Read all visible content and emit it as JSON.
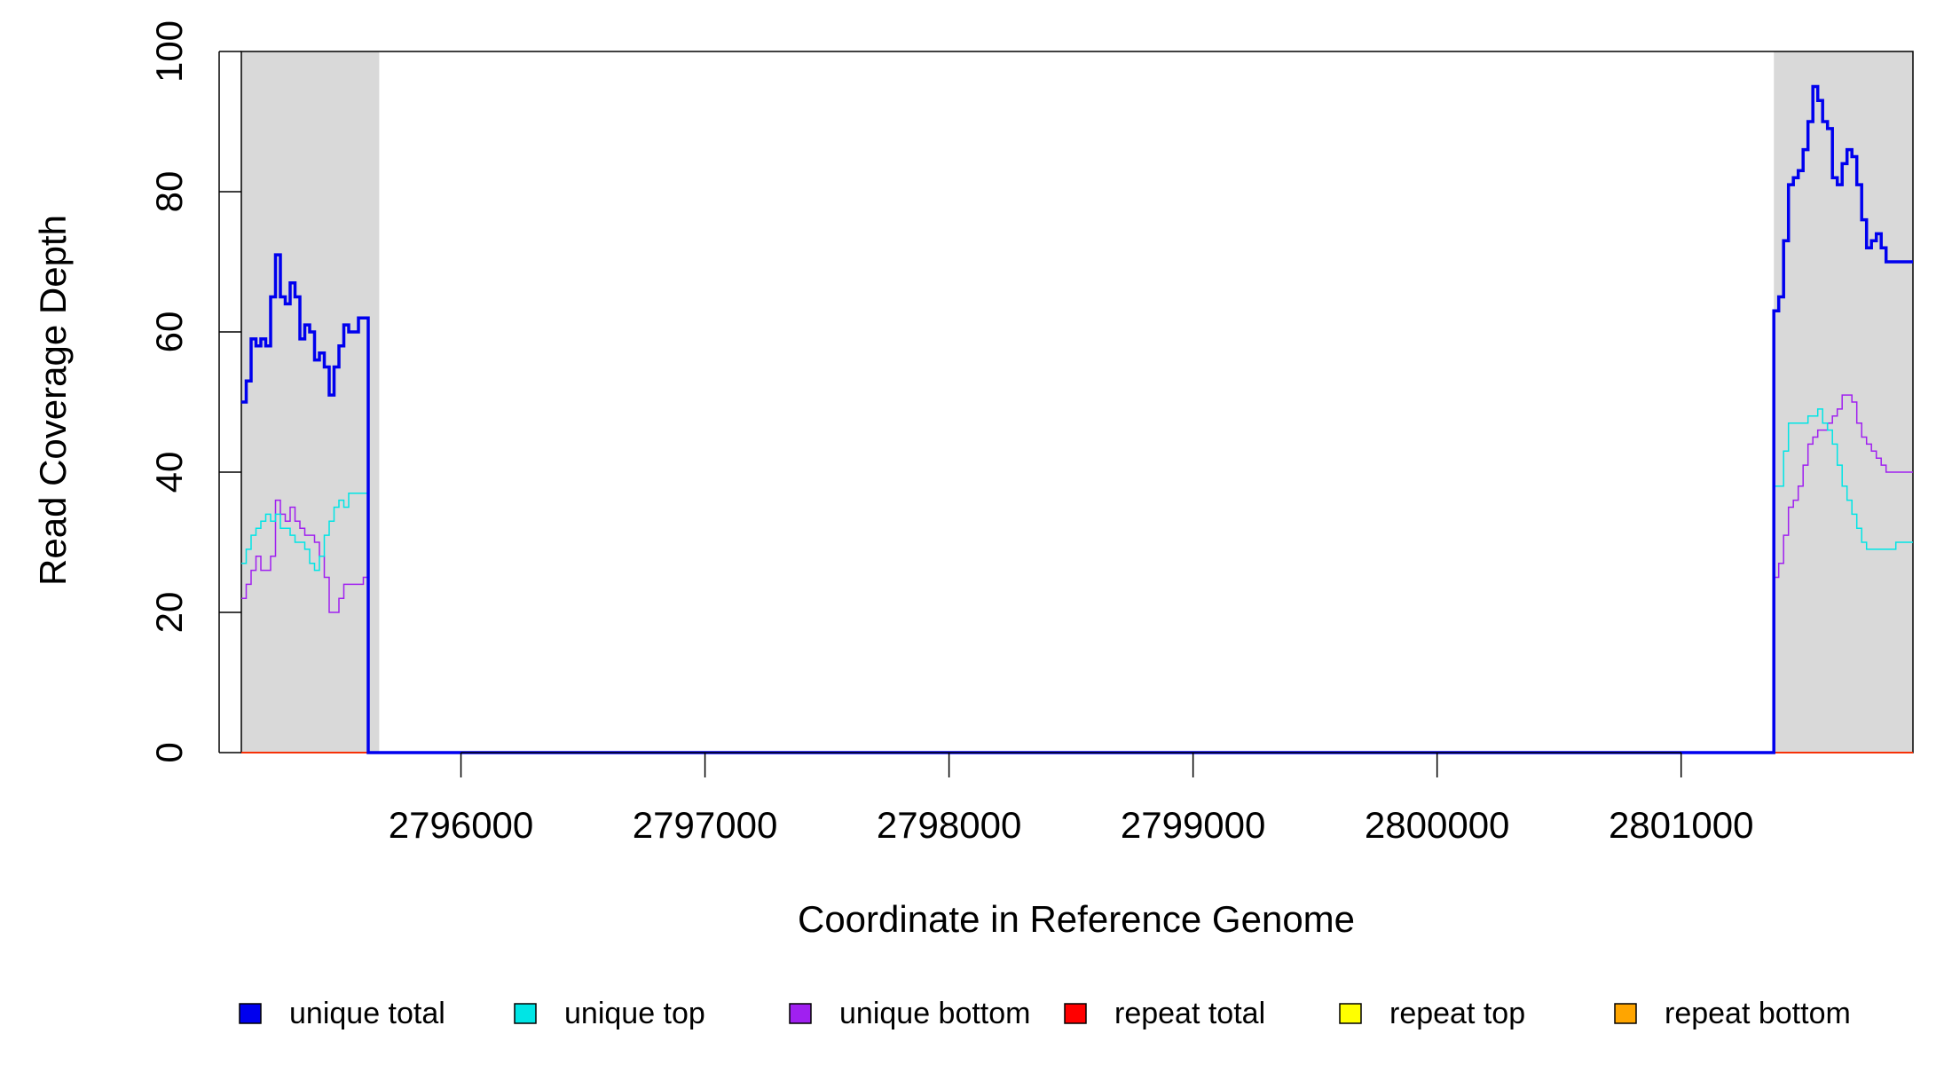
{
  "chart_data": {
    "type": "line",
    "xlabel": "Coordinate in Reference Genome",
    "ylabel": "Read Coverage Depth",
    "xlim": [
      2795100,
      2801950
    ],
    "ylim": [
      0,
      100
    ],
    "x_ticks": [
      2796000,
      2797000,
      2798000,
      2799000,
      2800000,
      2801000
    ],
    "x_tick_labels": [
      "2796000",
      "2797000",
      "2798000",
      "2799000",
      "2800000",
      "2801000"
    ],
    "y_ticks": [
      0,
      20,
      40,
      60,
      80,
      100
    ],
    "y_tick_labels": [
      "0",
      "20",
      "40",
      "60",
      "80",
      "100"
    ],
    "shaded_regions": [
      [
        2795100,
        2795665
      ],
      [
        2801380,
        2801950
      ]
    ],
    "shade_color": "#d9d9d9",
    "legend_position": "bottom",
    "series": [
      {
        "name": "unique total",
        "color": "#0000ee",
        "line_width": 3.5,
        "x": [
          2795100,
          2795120,
          2795140,
          2795160,
          2795180,
          2795200,
          2795220,
          2795240,
          2795260,
          2795280,
          2795300,
          2795320,
          2795340,
          2795360,
          2795380,
          2795400,
          2795420,
          2795440,
          2795460,
          2795480,
          2795500,
          2795520,
          2795540,
          2795560,
          2795580,
          2795600,
          2795620,
          2795640,
          2795660,
          2795665,
          2795670,
          2801375,
          2801380,
          2801400,
          2801420,
          2801440,
          2801460,
          2801480,
          2801500,
          2801520,
          2801540,
          2801560,
          2801580,
          2801600,
          2801620,
          2801640,
          2801660,
          2801680,
          2801700,
          2801720,
          2801740,
          2801760,
          2801780,
          2801800,
          2801820,
          2801840,
          2801860,
          2801880,
          2801900,
          2801920,
          2801950
        ],
        "y": [
          50,
          53,
          59,
          58,
          59,
          58,
          65,
          71,
          65,
          64,
          67,
          65,
          59,
          61,
          60,
          56,
          57,
          55,
          51,
          55,
          58,
          61,
          60,
          60,
          62,
          62,
          0,
          0,
          0,
          0,
          0,
          0,
          63,
          65,
          73,
          81,
          82,
          83,
          86,
          90,
          95,
          93,
          90,
          89,
          82,
          81,
          84,
          86,
          85,
          81,
          76,
          72,
          73,
          74,
          72,
          70,
          70,
          70,
          70,
          70,
          70
        ]
      },
      {
        "name": "unique top",
        "color": "#00e5e5",
        "line_width": 1.5,
        "x": [
          2795100,
          2795120,
          2795140,
          2795160,
          2795180,
          2795200,
          2795220,
          2795240,
          2795260,
          2795280,
          2795300,
          2795320,
          2795340,
          2795360,
          2795380,
          2795400,
          2795420,
          2795440,
          2795460,
          2795480,
          2795500,
          2795520,
          2795540,
          2795560,
          2795580,
          2795600,
          2795620,
          2795640,
          2795660,
          2795665,
          2795670,
          2801375,
          2801380,
          2801400,
          2801420,
          2801440,
          2801460,
          2801480,
          2801500,
          2801520,
          2801540,
          2801560,
          2801580,
          2801600,
          2801620,
          2801640,
          2801660,
          2801680,
          2801700,
          2801720,
          2801740,
          2801760,
          2801780,
          2801800,
          2801820,
          2801840,
          2801860,
          2801880,
          2801900,
          2801920,
          2801950
        ],
        "y": [
          27,
          29,
          31,
          32,
          33,
          34,
          33,
          34,
          32,
          32,
          31,
          30,
          30,
          29,
          27,
          26,
          28,
          31,
          33,
          35,
          36,
          35,
          37,
          37,
          37,
          37,
          0,
          0,
          0,
          0,
          0,
          0,
          38,
          38,
          43,
          47,
          47,
          47,
          47,
          48,
          48,
          49,
          47,
          46,
          44,
          41,
          38,
          36,
          34,
          32,
          30,
          29,
          29,
          29,
          29,
          29,
          29,
          30,
          30,
          30,
          30
        ]
      },
      {
        "name": "unique bottom",
        "color": "#a020f0",
        "line_width": 1.5,
        "x": [
          2795100,
          2795120,
          2795140,
          2795160,
          2795180,
          2795200,
          2795220,
          2795240,
          2795260,
          2795280,
          2795300,
          2795320,
          2795340,
          2795360,
          2795380,
          2795400,
          2795420,
          2795440,
          2795460,
          2795480,
          2795500,
          2795520,
          2795540,
          2795560,
          2795580,
          2795600,
          2795620,
          2795640,
          2795660,
          2795665,
          2795670,
          2801375,
          2801380,
          2801400,
          2801420,
          2801440,
          2801460,
          2801480,
          2801500,
          2801520,
          2801540,
          2801560,
          2801580,
          2801600,
          2801620,
          2801640,
          2801660,
          2801680,
          2801700,
          2801720,
          2801740,
          2801760,
          2801780,
          2801800,
          2801820,
          2801840,
          2801860,
          2801880,
          2801900,
          2801920,
          2801950
        ],
        "y": [
          22,
          24,
          26,
          28,
          26,
          26,
          28,
          36,
          34,
          33,
          35,
          33,
          32,
          31,
          31,
          30,
          28,
          25,
          20,
          20,
          22,
          24,
          24,
          24,
          24,
          25,
          0,
          0,
          0,
          0,
          0,
          0,
          25,
          27,
          31,
          35,
          36,
          38,
          41,
          44,
          45,
          46,
          46,
          47,
          48,
          49,
          51,
          51,
          50,
          47,
          45,
          44,
          43,
          42,
          41,
          40,
          40,
          40,
          40,
          40,
          40
        ]
      },
      {
        "name": "repeat total",
        "color": "#ff0000",
        "line_width": 1.5,
        "x": [
          2795100,
          2801950
        ],
        "y": [
          0,
          0
        ]
      },
      {
        "name": "repeat top",
        "color": "#ffff00",
        "line_width": 1.5,
        "x": [
          2795100,
          2801950
        ],
        "y": [
          0,
          0
        ]
      },
      {
        "name": "repeat bottom",
        "color": "#ffa500",
        "line_width": 1.5,
        "x": [
          2795100,
          2801950
        ],
        "y": [
          0,
          0
        ]
      }
    ]
  }
}
